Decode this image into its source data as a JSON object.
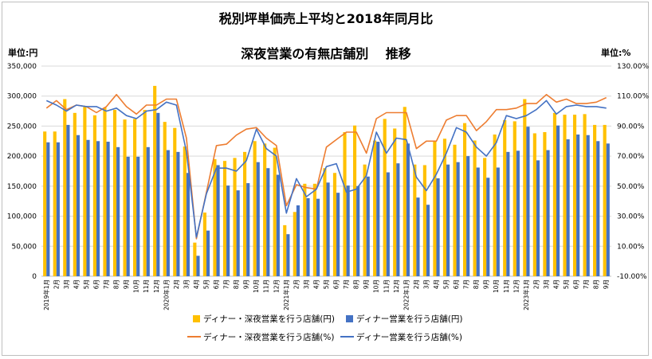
{
  "chart_data": {
    "type": "bar",
    "title": "税別坪単価売上平均と2018年同月比",
    "subtitle": "深夜営業の有無店舗別　 推移",
    "y_left_unit": "単位:円",
    "y_right_unit": "単位:%",
    "y_left_ticks": [
      "0",
      "50,000",
      "100,000",
      "150,000",
      "200,000",
      "250,000",
      "300,000",
      "350,000"
    ],
    "y_right_ticks": [
      "-10.00%",
      "10.00%",
      "30.00%",
      "50.00%",
      "70.00%",
      "90.00%",
      "110.00%",
      "130.00%"
    ],
    "ylim_left": [
      0,
      350000
    ],
    "ylim_right": [
      -10,
      130
    ],
    "categories": [
      "2019年1月",
      "2月",
      "3月",
      "4月",
      "5月",
      "6月",
      "7月",
      "8月",
      "9月",
      "10月",
      "11月",
      "12月",
      "2020年1月",
      "2月",
      "3月",
      "4月",
      "5月",
      "6月",
      "7月",
      "8月",
      "9月",
      "10月",
      "11月",
      "12月",
      "2021年1月",
      "2月",
      "3月",
      "4月",
      "5月",
      "6月",
      "7月",
      "8月",
      "9月",
      "10月",
      "11月",
      "12月",
      "2022年1月",
      "2月",
      "3月",
      "4月",
      "5月",
      "6月",
      "7月",
      "8月",
      "9月",
      "10月",
      "11月",
      "12月",
      "2023年1月",
      "2月",
      "3月",
      "4月",
      "5月",
      "6月",
      "7月",
      "8月",
      "9月"
    ],
    "series": [
      {
        "name": "ディナー・深夜営業を行う店舗(円)",
        "kind": "bar",
        "axis": "left",
        "color": "#FFC000",
        "values": [
          241000,
          241000,
          295000,
          272000,
          282000,
          268000,
          281000,
          277000,
          261000,
          262000,
          277000,
          317000,
          257000,
          247000,
          216000,
          56000,
          106000,
          195000,
          192000,
          197000,
          207000,
          225000,
          221000,
          214000,
          85000,
          107000,
          154000,
          154000,
          180000,
          172000,
          240000,
          251000,
          186000,
          226000,
          262000,
          246000,
          282000,
          186000,
          185000,
          226000,
          229000,
          219000,
          255000,
          226000,
          197000,
          236000,
          260000,
          258000,
          295000,
          238000,
          240000,
          272000,
          269000,
          269000,
          270000,
          252000,
          252000
        ]
      },
      {
        "name": "ディナー営業を行う店舗(円)",
        "kind": "bar",
        "axis": "left",
        "color": "#4472C4",
        "values": [
          223000,
          223000,
          252000,
          235000,
          227000,
          225000,
          224000,
          215000,
          199000,
          199000,
          215000,
          272000,
          210000,
          207000,
          172000,
          34000,
          76000,
          185000,
          151000,
          143000,
          155000,
          190000,
          180000,
          169000,
          70000,
          118000,
          130000,
          129000,
          156000,
          139000,
          151000,
          150000,
          166000,
          224000,
          173000,
          188000,
          221000,
          131000,
          119000,
          163000,
          186000,
          190000,
          200000,
          181000,
          164000,
          181000,
          207000,
          209000,
          249000,
          193000,
          210000,
          251000,
          228000,
          236000,
          235000,
          225000,
          221000
        ]
      },
      {
        "name": "ディナー・深夜営業を行う店舗(%)",
        "kind": "line",
        "axis": "right",
        "color": "#ED7D31",
        "values": [
          102,
          107,
          101,
          104,
          103,
          99,
          103,
          111,
          103,
          98,
          104,
          104,
          108,
          108,
          82,
          15,
          46,
          77,
          78,
          84,
          88,
          89,
          82,
          77,
          37,
          51,
          49,
          48,
          76,
          81,
          86,
          86,
          72,
          95,
          99,
          99,
          99,
          75,
          80,
          80,
          94,
          97,
          97,
          87,
          93,
          101,
          101,
          102,
          105,
          105,
          111,
          106,
          108,
          105,
          105,
          106,
          109
        ]
      },
      {
        "name": "ディナー営業を行う店舗(%)",
        "kind": "line",
        "axis": "right",
        "color": "#4472C4",
        "values": [
          107,
          104,
          100,
          104,
          103,
          103,
          100,
          102,
          97,
          95,
          100,
          101,
          106,
          104,
          73,
          16,
          45,
          62,
          62,
          60,
          67,
          88,
          75,
          70,
          32,
          55,
          43,
          48,
          63,
          65,
          46,
          48,
          57,
          86,
          72,
          82,
          81,
          56,
          47,
          58,
          72,
          89,
          86,
          76,
          70,
          79,
          97,
          95,
          97,
          101,
          107,
          98,
          103,
          104,
          103,
          103,
          102
        ]
      }
    ],
    "legend": {
      "placement": "bottom",
      "items": [
        "ディナー・深夜営業を行う店舗(円)",
        "ディナー営業を行う店舗(円)",
        "ディナー・深夜営業を行う店舗(%)",
        "ディナー営業を行う店舗(%)"
      ]
    },
    "grid": true
  }
}
